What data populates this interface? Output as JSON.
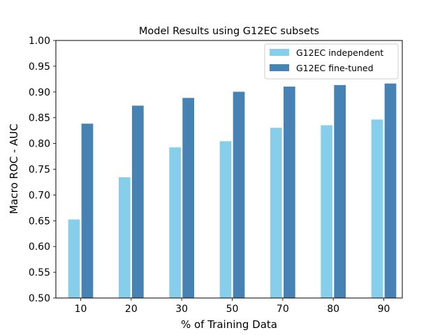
{
  "chart_data": {
    "type": "bar",
    "title": "Model Results using G12EC subsets",
    "xlabel": "% of Training Data",
    "ylabel": "Macro ROC - AUC",
    "categories": [
      "10",
      "20",
      "30",
      "50",
      "70",
      "80",
      "90"
    ],
    "ylim": [
      0.5,
      1.0
    ],
    "yticks": [
      "0.50",
      "0.55",
      "0.60",
      "0.65",
      "0.70",
      "0.75",
      "0.80",
      "0.85",
      "0.90",
      "0.95",
      "1.00"
    ],
    "grid": false,
    "legend_position": "top-right",
    "series": [
      {
        "name": "G12EC independent",
        "color": "#87ceeb",
        "values": [
          0.653,
          0.735,
          0.793,
          0.805,
          0.831,
          0.836,
          0.847
        ]
      },
      {
        "name": "G12EC fine-tuned",
        "color": "#4682b4",
        "values": [
          0.839,
          0.874,
          0.889,
          0.901,
          0.911,
          0.914,
          0.917
        ]
      }
    ]
  }
}
